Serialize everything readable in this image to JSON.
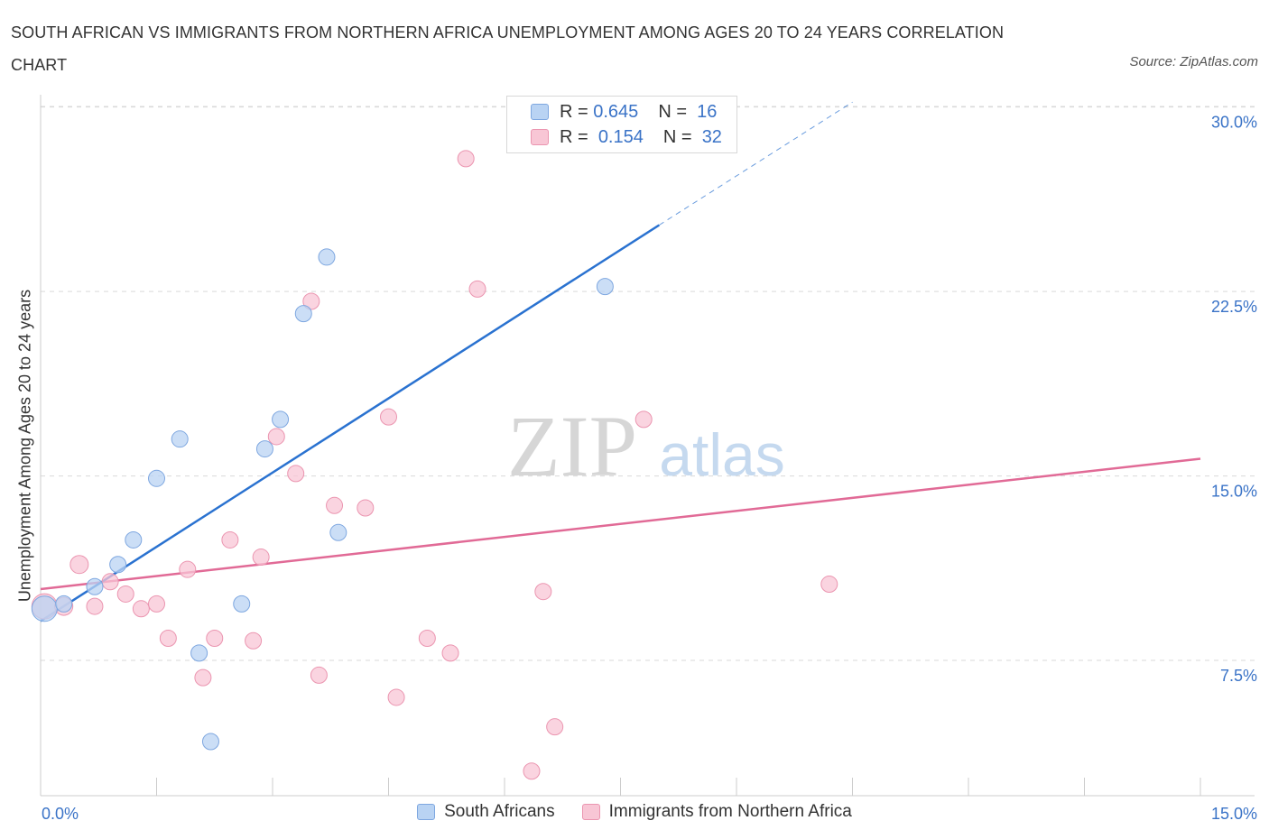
{
  "title": "SOUTH AFRICAN VS IMMIGRANTS FROM NORTHERN AFRICA UNEMPLOYMENT AMONG AGES 20 TO 24 YEARS CORRELATION CHART",
  "source": "Source: ZipAtlas.com",
  "watermark": {
    "zip": "ZIP",
    "atlas": "atlas"
  },
  "legend_top": [
    {
      "r_label": "R =",
      "r_value": "0.645",
      "n_label": "N =",
      "n_value": "16"
    },
    {
      "r_label": "R =",
      "r_value": "0.154",
      "n_label": "N =",
      "n_value": "32"
    }
  ],
  "legend_bottom": [
    "South Africans",
    "Immigrants from Northern Africa"
  ],
  "colors": {
    "blue_fill": "#b9d3f3",
    "blue_stroke": "#7ea7e0",
    "blue_line": "#2a72d0",
    "pink_fill": "#f8c6d5",
    "pink_stroke": "#eb95b0",
    "pink_line": "#e16a96",
    "axis_text": "#3a73c7",
    "grid": "#d9d9d9"
  },
  "chart_data": {
    "type": "scatter",
    "title": "SOUTH AFRICAN VS IMMIGRANTS FROM NORTHERN AFRICA UNEMPLOYMENT AMONG AGES 20 TO 24 YEARS CORRELATION CHART",
    "xlabel": "",
    "ylabel": "Unemployment Among Ages 20 to 24 years",
    "xlim": [
      0,
      15
    ],
    "ylim": [
      2,
      30.5
    ],
    "x_tick_labels": [
      "0.0%",
      "15.0%"
    ],
    "y_ticks": [
      7.5,
      15,
      22.5,
      30
    ],
    "y_tick_labels": [
      "7.5%",
      "15.0%",
      "22.5%",
      "30.0%"
    ],
    "grid": true,
    "legend_position": "top-center",
    "series": [
      {
        "name": "South Africans",
        "color": "#b9d3f3",
        "points": [
          [
            0.05,
            9.6,
            14
          ],
          [
            0.3,
            9.8,
            9
          ],
          [
            0.7,
            10.5,
            9
          ],
          [
            1.0,
            11.4,
            9
          ],
          [
            1.2,
            12.4,
            9
          ],
          [
            1.5,
            14.9,
            9
          ],
          [
            1.8,
            16.5,
            9
          ],
          [
            2.05,
            7.8,
            9
          ],
          [
            2.2,
            4.2,
            9
          ],
          [
            2.6,
            9.8,
            9
          ],
          [
            2.9,
            16.1,
            9
          ],
          [
            3.1,
            17.3,
            9
          ],
          [
            3.4,
            21.6,
            9
          ],
          [
            3.7,
            23.9,
            9
          ],
          [
            3.85,
            12.7,
            9
          ],
          [
            7.3,
            22.7,
            9
          ]
        ],
        "trend": {
          "x0": 0,
          "y0": 9.1,
          "x1": 8.0,
          "y1": 25.2,
          "dash_to_x": 10.5,
          "dash_to_y": 30.2
        }
      },
      {
        "name": "Immigrants from Northern Africa",
        "color": "#f8c6d5",
        "points": [
          [
            0.05,
            9.7,
            14
          ],
          [
            0.3,
            9.7,
            10
          ],
          [
            0.5,
            11.4,
            10
          ],
          [
            0.7,
            9.7,
            9
          ],
          [
            0.9,
            10.7,
            9
          ],
          [
            1.1,
            10.2,
            9
          ],
          [
            1.3,
            9.6,
            9
          ],
          [
            1.5,
            9.8,
            9
          ],
          [
            1.65,
            8.4,
            9
          ],
          [
            1.9,
            11.2,
            9
          ],
          [
            2.1,
            6.8,
            9
          ],
          [
            2.25,
            8.4,
            9
          ],
          [
            2.45,
            12.4,
            9
          ],
          [
            2.75,
            8.3,
            9
          ],
          [
            2.85,
            11.7,
            9
          ],
          [
            3.05,
            16.6,
            9
          ],
          [
            3.3,
            15.1,
            9
          ],
          [
            3.5,
            22.1,
            9
          ],
          [
            3.6,
            6.9,
            9
          ],
          [
            3.8,
            13.8,
            9
          ],
          [
            4.2,
            13.7,
            9
          ],
          [
            4.5,
            17.4,
            9
          ],
          [
            4.6,
            6.0,
            9
          ],
          [
            5.0,
            8.4,
            9
          ],
          [
            5.3,
            7.8,
            9
          ],
          [
            5.5,
            27.9,
            9
          ],
          [
            5.65,
            22.6,
            9
          ],
          [
            6.35,
            3.0,
            9
          ],
          [
            6.5,
            10.3,
            9
          ],
          [
            6.65,
            4.8,
            9
          ],
          [
            7.8,
            17.3,
            9
          ],
          [
            10.2,
            10.6,
            9
          ]
        ],
        "trend": {
          "x0": 0,
          "y0": 10.4,
          "x1": 15,
          "y1": 15.7
        }
      }
    ]
  }
}
